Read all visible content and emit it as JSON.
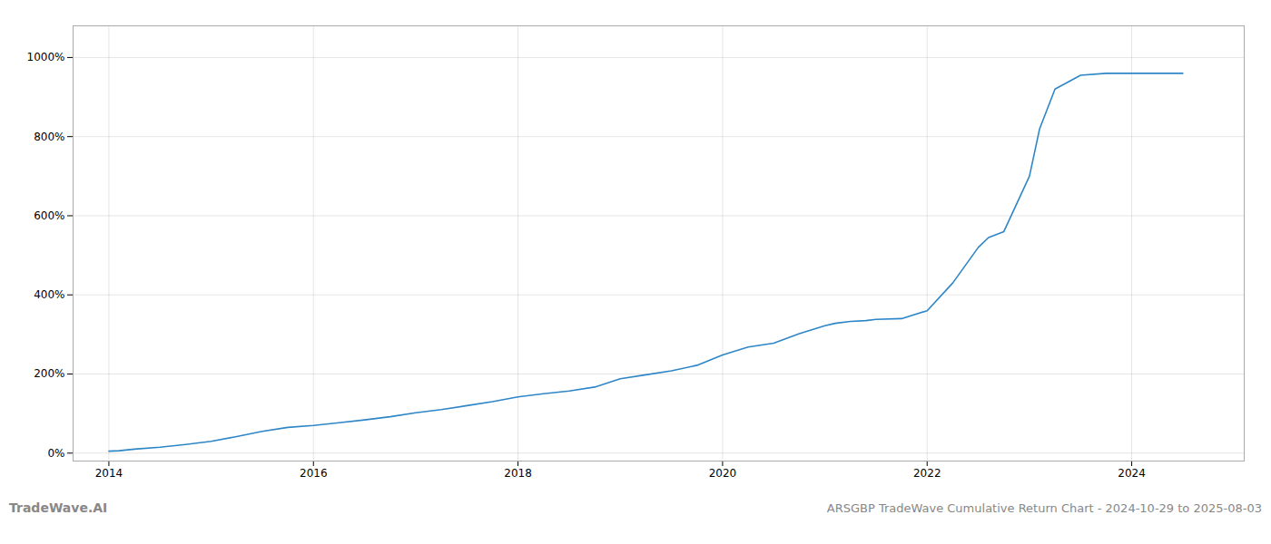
{
  "chart_data": {
    "type": "line",
    "title": "ARSGBP TradeWave Cumulative Return Chart - 2024-10-29 to 2025-08-03",
    "annotations": [
      "TradeWave.AI"
    ],
    "color": "#2e86c7",
    "x": [
      2014.0,
      2014.1,
      2014.25,
      2014.5,
      2014.75,
      2015.0,
      2015.25,
      2015.5,
      2015.75,
      2016.0,
      2016.25,
      2016.5,
      2016.75,
      2017.0,
      2017.25,
      2017.5,
      2017.75,
      2018.0,
      2018.25,
      2018.5,
      2018.75,
      2019.0,
      2019.25,
      2019.5,
      2019.75,
      2020.0,
      2020.25,
      2020.5,
      2020.75,
      2021.0,
      2021.1,
      2021.25,
      2021.4,
      2021.5,
      2021.75,
      2022.0,
      2022.25,
      2022.5,
      2022.6,
      2022.75,
      2023.0,
      2023.1,
      2023.25,
      2023.5,
      2023.75,
      2024.0,
      2024.25,
      2024.5
    ],
    "values": [
      5,
      6,
      10,
      15,
      22,
      30,
      42,
      55,
      65,
      70,
      77,
      84,
      92,
      102,
      110,
      120,
      130,
      142,
      150,
      157,
      167,
      188,
      198,
      208,
      222,
      248,
      268,
      278,
      302,
      322,
      328,
      333,
      335,
      338,
      340,
      360,
      430,
      520,
      545,
      560,
      700,
      820,
      920,
      955,
      960,
      960,
      960,
      960
    ],
    "xlim": [
      2013.65,
      2025.1
    ],
    "xticks": [
      2014,
      2016,
      2018,
      2020,
      2022,
      2024
    ],
    "ylim": [
      -20,
      1080
    ],
    "yticks": [
      {
        "value": 0,
        "label": "0%"
      },
      {
        "value": 200,
        "label": "200%"
      },
      {
        "value": 400,
        "label": "400%"
      },
      {
        "value": 600,
        "label": "600%"
      },
      {
        "value": 800,
        "label": "800%"
      },
      {
        "value": 1000,
        "label": "1000%"
      }
    ],
    "grid": true
  }
}
